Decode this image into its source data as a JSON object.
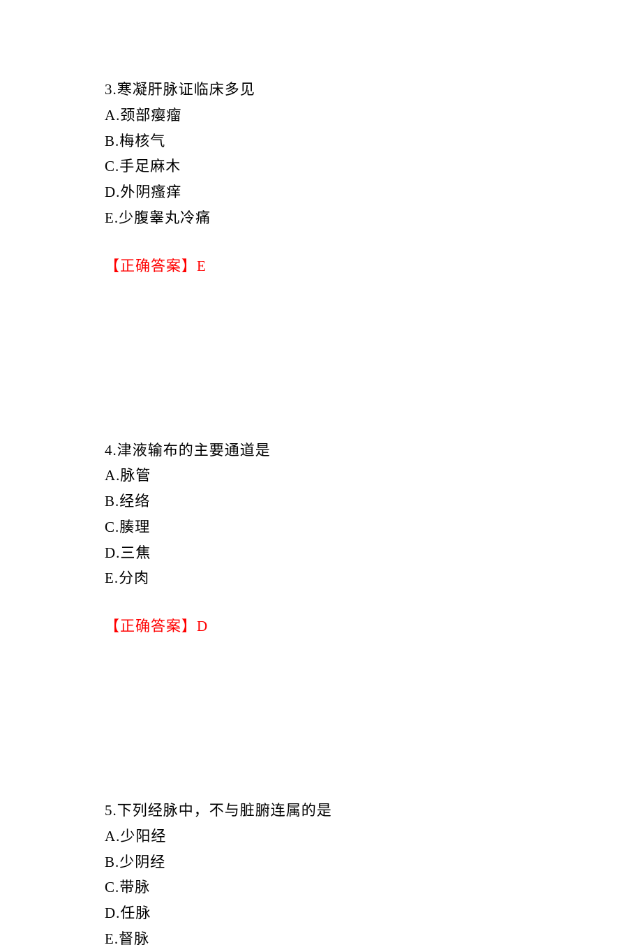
{
  "questions": [
    {
      "number": "3.",
      "text": "寒凝肝脉证临床多见",
      "options": [
        {
          "label": "A.",
          "text": "颈部瘿瘤"
        },
        {
          "label": "B.",
          "text": "梅核气"
        },
        {
          "label": "C.",
          "text": "手足麻木"
        },
        {
          "label": "D.",
          "text": "外阴瘙痒"
        },
        {
          "label": "E.",
          "text": "少腹睾丸冷痛"
        }
      ],
      "answer_label": "【正确答案】",
      "answer_value": "E"
    },
    {
      "number": "4.",
      "text": "津液输布的主要通道是",
      "options": [
        {
          "label": "A.",
          "text": "脉管"
        },
        {
          "label": "B.",
          "text": "经络"
        },
        {
          "label": "C.",
          "text": "腠理"
        },
        {
          "label": "D.",
          "text": "三焦"
        },
        {
          "label": "E.",
          "text": "分肉"
        }
      ],
      "answer_label": "【正确答案】",
      "answer_value": "D"
    },
    {
      "number": "5.",
      "text": "下列经脉中，不与脏腑连属的是",
      "options": [
        {
          "label": "A.",
          "text": "少阳经"
        },
        {
          "label": "B.",
          "text": "少阴经"
        },
        {
          "label": "C.",
          "text": "带脉"
        },
        {
          "label": "D.",
          "text": "任脉"
        },
        {
          "label": "E.",
          "text": "督脉"
        }
      ],
      "answer_label": "",
      "answer_value": ""
    }
  ]
}
